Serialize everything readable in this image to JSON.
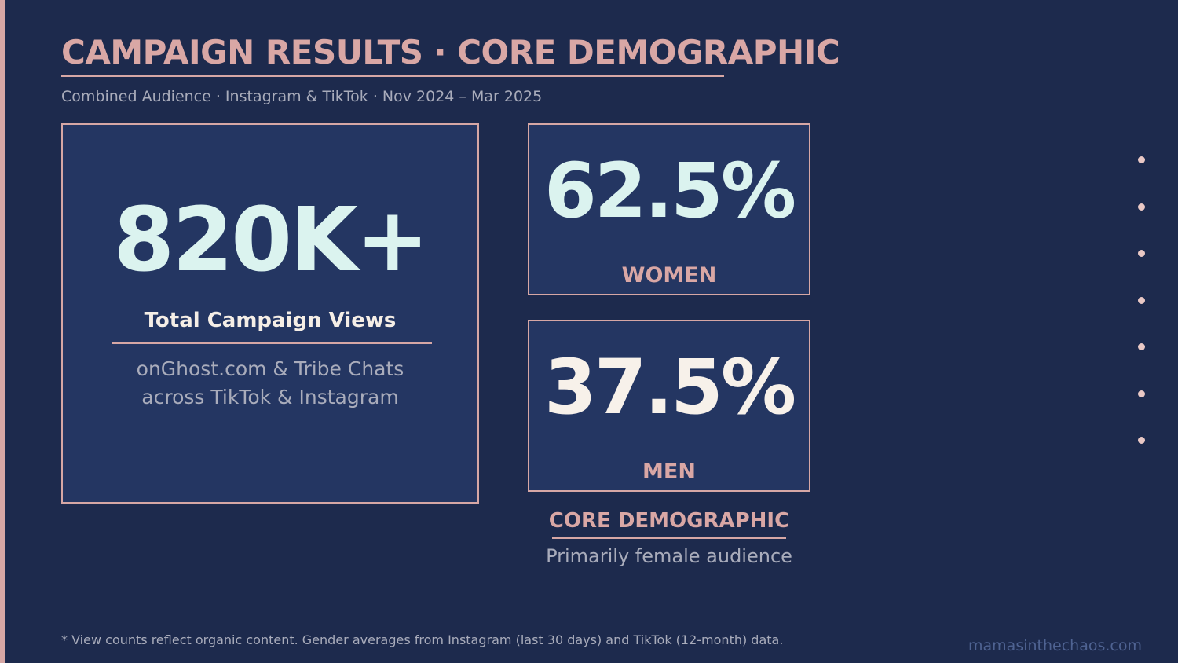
{
  "header": {
    "title": "CAMPAIGN RESULTS · CORE DEMOGRAPHIC",
    "subtitle": "Combined Audience · Instagram & TikTok · Nov 2024 – Mar 2025"
  },
  "views": {
    "value": "820K+",
    "label": "Total Campaign Views",
    "description_line1": "onGhost.com & Tribe Chats",
    "description_line2": "across TikTok & Instagram"
  },
  "demographics": {
    "women": {
      "value": "62.5%",
      "label": "WOMEN"
    },
    "men": {
      "value": "37.5%",
      "label": "MEN"
    },
    "core_title": "CORE DEMOGRAPHIC",
    "core_subtitle": "Primarily female audience"
  },
  "footer": {
    "footnote": "* View counts reflect organic content. Gender averages from Instagram (last 30 days) and TikTok (12-month) data.",
    "website": "mamasinthechaos.com"
  },
  "colors": {
    "background": "#1d2a4d",
    "panel": "#243662",
    "accent": "#d6a7a5",
    "mint": "#dbf3ef",
    "cream": "#f7f1ea",
    "muted": "#a9acbb"
  }
}
